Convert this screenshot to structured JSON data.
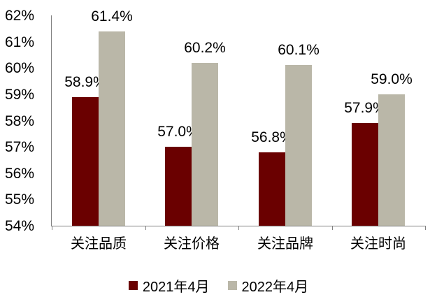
{
  "chart_data": {
    "type": "bar",
    "categories": [
      "关注品质",
      "关注价格",
      "关注品牌",
      "关注时尚"
    ],
    "series": [
      {
        "name": "2021年4月",
        "color": "#6a0000",
        "values": [
          58.9,
          57.0,
          56.8,
          57.9
        ],
        "value_labels": [
          "58.9%",
          "57.0%",
          "56.8%",
          "57.9%"
        ]
      },
      {
        "name": "2022年4月",
        "color": "#bab7a8",
        "values": [
          61.4,
          60.2,
          60.1,
          59.0
        ],
        "value_labels": [
          "61.4%",
          "60.2%",
          "60.1%",
          "59.0%"
        ]
      }
    ],
    "title": "",
    "xlabel": "",
    "ylabel": "",
    "ylim": [
      54,
      62
    ],
    "ytick_step": 1,
    "ytick_suffix": "%",
    "ytick_labels": [
      "54%",
      "55%",
      "56%",
      "57%",
      "58%",
      "59%",
      "60%",
      "61%",
      "62%"
    ],
    "grid": false,
    "legend_position": "bottom",
    "axis_color": "#808080",
    "text_color": "#000000",
    "background_color": "#ffffff"
  }
}
